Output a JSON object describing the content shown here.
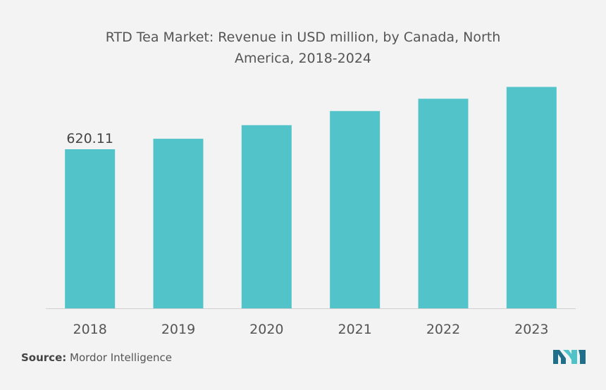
{
  "chart_data": {
    "type": "bar",
    "title": "RTD Tea Market: Revenue in USD million, by Canada, North America, 2018-2024",
    "categories": [
      "2018",
      "2019",
      "2020",
      "2021",
      "2022",
      "2023"
    ],
    "values": [
      620.11,
      661,
      714,
      769,
      817,
      863
    ],
    "data_labels": [
      "620.11",
      "",
      "",
      "",
      "",
      ""
    ],
    "xlabel": "",
    "ylabel": "",
    "ylim": [
      0,
      900
    ],
    "grid": false,
    "legend": "none",
    "bar_color": "#52c4c9"
  },
  "source": {
    "label": "Source:",
    "text": "Mordor Intelligence"
  },
  "logo": {
    "icon": "mordor-intelligence-logo-icon",
    "color_left": "#1f6f8b",
    "color_right": "#4fc3c8"
  }
}
